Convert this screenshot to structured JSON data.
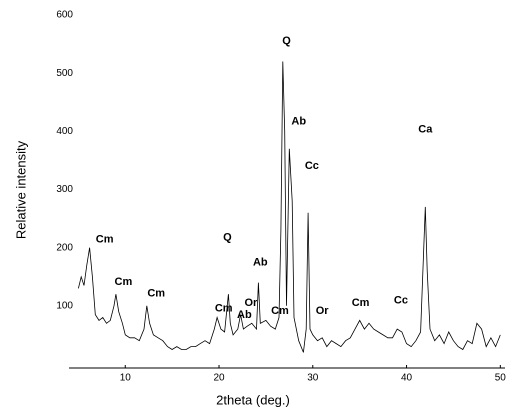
{
  "chart_data": {
    "type": "line",
    "xlabel": "2theta (deg.)",
    "ylabel": "Relative intensity",
    "xlim": [
      4,
      50.5
    ],
    "xticks": [
      10,
      20,
      30,
      40,
      50
    ],
    "ylim": [
      0,
      600
    ],
    "yticks": [
      100,
      200,
      300,
      400,
      500,
      600
    ],
    "grid": false,
    "series": [
      {
        "color": "#000000",
        "x": [
          5.0,
          5.3,
          5.6,
          5.9,
          6.2,
          6.5,
          6.8,
          7.2,
          7.6,
          8.0,
          8.4,
          8.8,
          9.0,
          9.3,
          9.7,
          10.0,
          10.5,
          11.0,
          11.5,
          12.0,
          12.3,
          12.6,
          13.0,
          13.5,
          14.0,
          14.5,
          15.0,
          15.5,
          16.0,
          16.5,
          17.0,
          17.5,
          18.0,
          18.5,
          19.0,
          19.5,
          19.8,
          20.2,
          20.6,
          21.0,
          21.2,
          21.5,
          22.0,
          22.3,
          22.6,
          23.0,
          23.5,
          24.0,
          24.2,
          24.4,
          25.0,
          25.5,
          26.0,
          26.4,
          26.6,
          26.8,
          27.0,
          27.2,
          27.5,
          27.8,
          28.0,
          28.5,
          29.0,
          29.3,
          29.5,
          29.7,
          30.0,
          30.5,
          31.0,
          31.5,
          32.0,
          32.5,
          33.0,
          33.5,
          34.0,
          34.5,
          35.0,
          35.5,
          36.0,
          36.5,
          37.0,
          37.5,
          38.0,
          38.5,
          39.0,
          39.5,
          40.0,
          40.5,
          41.0,
          41.5,
          42.0,
          42.2,
          42.5,
          43.0,
          43.5,
          44.0,
          44.5,
          45.0,
          45.5,
          46.0,
          46.5,
          47.0,
          47.5,
          48.0,
          48.5,
          49.0,
          49.5,
          50.0
        ],
        "values": [
          130,
          150,
          135,
          170,
          200,
          150,
          85,
          75,
          80,
          70,
          75,
          100,
          120,
          90,
          70,
          50,
          45,
          45,
          40,
          60,
          100,
          70,
          50,
          45,
          40,
          30,
          25,
          30,
          25,
          25,
          30,
          30,
          35,
          40,
          35,
          60,
          80,
          60,
          55,
          120,
          70,
          50,
          60,
          85,
          60,
          65,
          70,
          60,
          140,
          70,
          75,
          65,
          60,
          80,
          230,
          520,
          400,
          100,
          370,
          280,
          80,
          40,
          20,
          60,
          260,
          60,
          50,
          40,
          45,
          30,
          40,
          35,
          30,
          40,
          45,
          60,
          75,
          60,
          70,
          60,
          55,
          50,
          45,
          45,
          60,
          55,
          35,
          30,
          40,
          55,
          270,
          160,
          60,
          40,
          50,
          35,
          55,
          40,
          30,
          25,
          40,
          35,
          70,
          60,
          30,
          45,
          30,
          50
        ]
      }
    ],
    "annotations": [
      {
        "text": "Cm",
        "x": 7.8,
        "y": 214
      },
      {
        "text": "Cm",
        "x": 9.8,
        "y": 141
      },
      {
        "text": "Cm",
        "x": 13.3,
        "y": 121
      },
      {
        "text": "Q",
        "x": 20.9,
        "y": 217
      },
      {
        "text": "Ab",
        "x": 24.4,
        "y": 174
      },
      {
        "text": "Or",
        "x": 23.4,
        "y": 105
      },
      {
        "text": "Cm",
        "x": 20.5,
        "y": 95
      },
      {
        "text": "Ab",
        "x": 22.7,
        "y": 84
      },
      {
        "text": "Cm",
        "x": 26.5,
        "y": 91
      },
      {
        "text": "Or",
        "x": 31.0,
        "y": 91
      },
      {
        "text": "Cm",
        "x": 35.1,
        "y": 105
      },
      {
        "text": "Cc",
        "x": 39.4,
        "y": 109
      },
      {
        "text": "Q",
        "x": 27.2,
        "y": 555
      },
      {
        "text": "Ab",
        "x": 28.5,
        "y": 417
      },
      {
        "text": "Cc",
        "x": 29.9,
        "y": 340
      },
      {
        "text": "Ca",
        "x": 42.0,
        "y": 403
      }
    ]
  }
}
